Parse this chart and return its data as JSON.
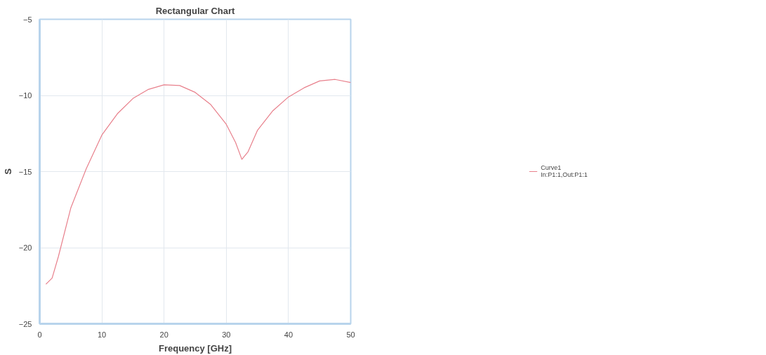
{
  "chart_data": {
    "type": "line",
    "title": "Rectangular Chart",
    "xlabel": "Frequency [GHz]",
    "ylabel": "S",
    "x": [
      1,
      2,
      3,
      5,
      7.5,
      10,
      12.5,
      15,
      17.5,
      20,
      22.5,
      25,
      27.5,
      30,
      31.5,
      32.5,
      33.5,
      35,
      37.5,
      40,
      42.5,
      45,
      47.5,
      50
    ],
    "series": [
      {
        "name": "Curve1\nIn:P1:1,Out:P1:1",
        "color": "#e8808c",
        "values": [
          -22.4,
          -22.0,
          -20.6,
          -17.4,
          -14.8,
          -12.6,
          -11.2,
          -10.2,
          -9.6,
          -9.3,
          -9.35,
          -9.8,
          -10.6,
          -11.9,
          -13.1,
          -14.2,
          -13.7,
          -12.3,
          -11.0,
          -10.1,
          -9.5,
          -9.05,
          -8.95,
          -9.15
        ]
      }
    ],
    "xlim": [
      0,
      50
    ],
    "ylim": [
      -25,
      -5
    ],
    "xticks": [
      0,
      10,
      20,
      30,
      40,
      50
    ],
    "yticks": [
      -25,
      -20,
      -15,
      -10,
      -5
    ],
    "grid": true,
    "legend": "right",
    "line_style": "solid",
    "marker": "none"
  }
}
